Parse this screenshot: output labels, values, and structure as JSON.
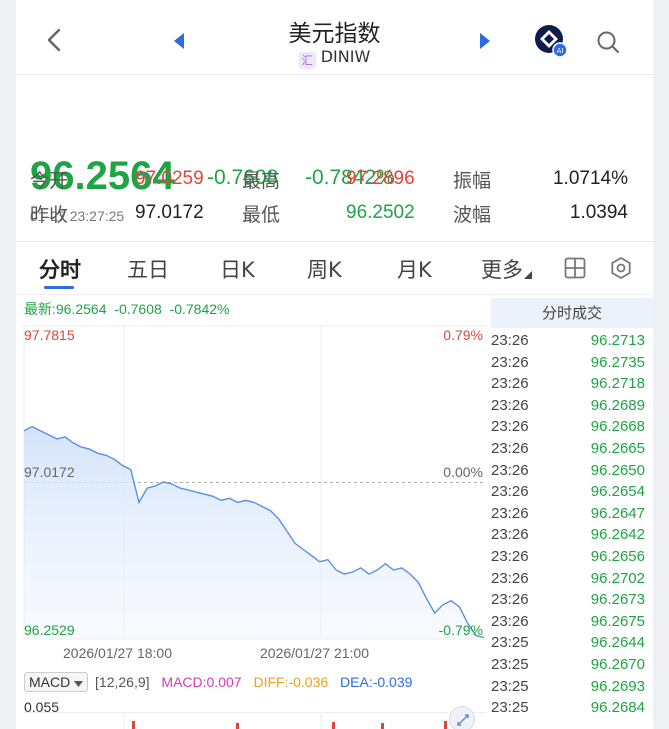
{
  "header": {
    "title": "美元指数",
    "badge": "汇",
    "symbol": "DINIW"
  },
  "quote": {
    "price": "96.2564",
    "change": "-0.7608",
    "change_pct": "-0.7842%",
    "timestamp": "01-27 23:27:25",
    "open_label": "今开",
    "open": "97.0259",
    "high_label": "最高",
    "high": "97.2896",
    "amplitude_label": "振幅",
    "amplitude": "1.0714%",
    "prev_close_label": "昨收",
    "prev_close": "97.0172",
    "low_label": "最低",
    "low": "96.2502",
    "range_label": "波幅",
    "range": "1.0394"
  },
  "tabs": [
    {
      "label": "分时",
      "active": true
    },
    {
      "label": "五日",
      "active": false
    },
    {
      "label": "日K",
      "active": false
    },
    {
      "label": "周K",
      "active": false
    },
    {
      "label": "月K",
      "active": false
    },
    {
      "label": "更多",
      "active": false
    }
  ],
  "chart_legend": {
    "latest": "最新:96.2564",
    "change": "-0.7608",
    "change_pct": "-0.7842%"
  },
  "chart_data": {
    "type": "line",
    "y_high_label": "97.7815",
    "y_mid_label": "97.0172",
    "y_low_label": "96.2529",
    "pct_high_label": "0.79%",
    "pct_mid_label": "0.00%",
    "pct_low_label": "-0.79%",
    "ylim": [
      96.2529,
      97.7815
    ],
    "x_labels": [
      "2026/01/27 18:00",
      "2026/01/27 21:00"
    ],
    "values": [
      97.27,
      97.29,
      97.27,
      97.25,
      97.23,
      97.24,
      97.21,
      97.19,
      97.18,
      97.16,
      97.15,
      97.13,
      97.1,
      97.08,
      96.92,
      96.99,
      97.0,
      97.02,
      97.01,
      96.99,
      96.98,
      96.97,
      96.96,
      96.95,
      96.93,
      96.94,
      96.92,
      96.93,
      96.92,
      96.9,
      96.88,
      96.84,
      96.78,
      96.72,
      96.69,
      96.66,
      96.63,
      96.64,
      96.59,
      96.57,
      96.58,
      96.6,
      96.57,
      96.59,
      96.62,
      96.59,
      96.6,
      96.57,
      96.53,
      96.45,
      96.38,
      96.42,
      96.44,
      96.41,
      96.33,
      96.27,
      96.26
    ]
  },
  "macd": {
    "selector": "MACD",
    "params": "[12,26,9]",
    "macd": "MACD:0.007",
    "diff": "DIFF:-0.036",
    "dea": "DEA:-0.039",
    "axis_top": "0.055",
    "colors": {
      "macd": "#d63bb9",
      "diff": "#f0a020",
      "dea": "#2d6be4"
    }
  },
  "trades": {
    "header": "分时成交",
    "rows": [
      {
        "time": "23:26",
        "price": "96.2713"
      },
      {
        "time": "23:26",
        "price": "96.2735"
      },
      {
        "time": "23:26",
        "price": "96.2718"
      },
      {
        "time": "23:26",
        "price": "96.2689"
      },
      {
        "time": "23:26",
        "price": "96.2668"
      },
      {
        "time": "23:26",
        "price": "96.2665"
      },
      {
        "time": "23:26",
        "price": "96.2650"
      },
      {
        "time": "23:26",
        "price": "96.2654"
      },
      {
        "time": "23:26",
        "price": "96.2647"
      },
      {
        "time": "23:26",
        "price": "96.2642"
      },
      {
        "time": "23:26",
        "price": "96.2656"
      },
      {
        "time": "23:26",
        "price": "96.2702"
      },
      {
        "time": "23:26",
        "price": "96.2673"
      },
      {
        "time": "23:26",
        "price": "96.2675"
      },
      {
        "time": "23:25",
        "price": "96.2644"
      },
      {
        "time": "23:25",
        "price": "96.2670"
      },
      {
        "time": "23:25",
        "price": "96.2693"
      },
      {
        "time": "23:25",
        "price": "96.2684"
      }
    ]
  },
  "colors": {
    "up": "#e0443a",
    "down": "#1fa443",
    "accent": "#2d6be4",
    "line": "#5b8fe6"
  }
}
